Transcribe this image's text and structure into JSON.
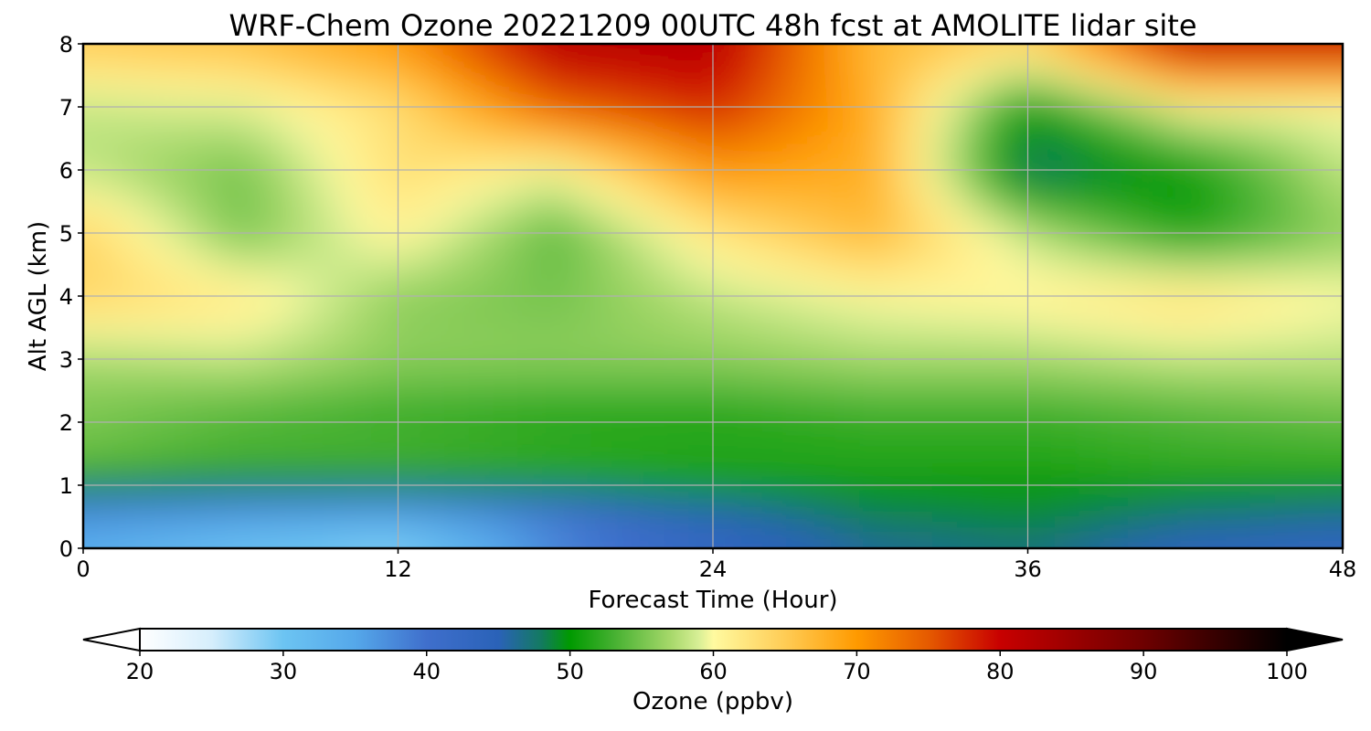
{
  "chart_data": {
    "type": "heatmap",
    "title": "WRF-Chem Ozone  20221209 00UTC 48h fcst at AMOLITE lidar site",
    "xlabel": "Forecast Time (Hour)",
    "ylabel": "Alt AGL (km)",
    "xlim": [
      0,
      48
    ],
    "ylim": [
      0,
      8
    ],
    "xticks": [
      0,
      12,
      24,
      36,
      48
    ],
    "yticks": [
      0,
      1,
      2,
      3,
      4,
      5,
      6,
      7,
      8
    ],
    "grid": true,
    "x": [
      0,
      6,
      12,
      18,
      24,
      30,
      36,
      42,
      48
    ],
    "y": [
      0,
      0.5,
      1,
      1.5,
      2,
      3,
      4,
      5,
      6,
      7,
      8
    ],
    "z": [
      [
        34,
        31,
        29,
        38,
        43,
        46,
        47,
        44,
        43
      ],
      [
        36,
        34,
        33,
        38,
        44,
        48,
        49,
        47,
        46
      ],
      [
        49,
        48,
        48,
        49,
        50,
        50,
        50,
        50,
        50
      ],
      [
        55,
        54,
        54,
        53,
        52,
        52,
        52,
        53,
        53
      ],
      [
        55,
        53,
        52,
        51,
        51,
        52,
        52,
        53,
        54
      ],
      [
        57,
        58,
        56,
        56,
        56,
        57,
        57,
        58,
        58
      ],
      [
        64,
        62,
        56,
        55,
        58,
        60,
        61,
        63,
        60
      ],
      [
        64,
        55,
        61,
        54,
        62,
        67,
        58,
        51,
        56
      ],
      [
        58,
        55,
        63,
        60,
        70,
        68,
        47,
        50,
        58
      ],
      [
        58,
        59,
        63,
        74,
        78,
        68,
        50,
        60,
        60
      ],
      [
        65,
        66,
        70,
        82,
        82,
        67,
        64,
        80,
        80
      ]
    ],
    "colorbar": {
      "label": "Ozone  (ppbv)",
      "min": 20,
      "max": 100,
      "ticks": [
        20,
        30,
        40,
        50,
        60,
        70,
        80,
        90,
        100
      ],
      "extend": "both",
      "stops": [
        [
          20,
          "#ffffff"
        ],
        [
          25,
          "#d6eefc"
        ],
        [
          30,
          "#6cc4f2"
        ],
        [
          35,
          "#55a8ea"
        ],
        [
          40,
          "#3f6fcc"
        ],
        [
          45,
          "#2a62b8"
        ],
        [
          48,
          "#137a60"
        ],
        [
          50,
          "#009a00"
        ],
        [
          53,
          "#44b030"
        ],
        [
          57,
          "#a6d86a"
        ],
        [
          59,
          "#d8ef96"
        ],
        [
          60,
          "#fffaa0"
        ],
        [
          65,
          "#ffcc55"
        ],
        [
          70,
          "#ff9a00"
        ],
        [
          75,
          "#e55a00"
        ],
        [
          80,
          "#c80000"
        ],
        [
          90,
          "#6e0000"
        ],
        [
          100,
          "#000000"
        ]
      ]
    }
  }
}
